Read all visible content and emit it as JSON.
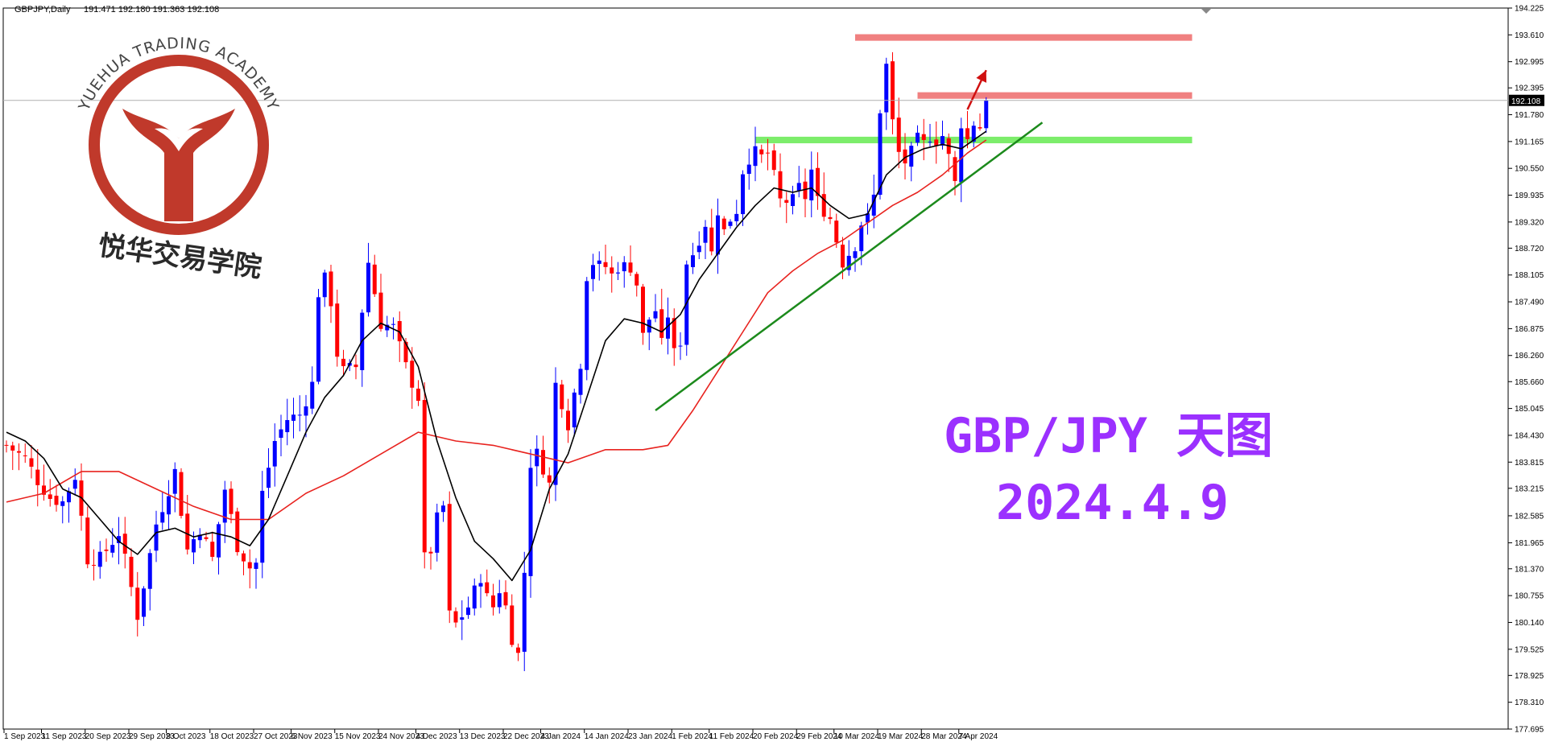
{
  "header": {
    "symbol": "GBPJPY,Daily",
    "ohlc": "191.471 192.180 191.363 192.108"
  },
  "logo": {
    "arc_text": "YUEHUA TRADING ACADEMY",
    "cn_text": "悦华交易学院"
  },
  "annotation": {
    "line1": "GBP/JPY 天图",
    "line2": "2024.4.9"
  },
  "colors": {
    "bull": "#0000ff",
    "bear": "#ff0000",
    "ma_fast": "#000000",
    "ma_slow": "#e8231f",
    "resistance": "#f08080",
    "support": "#7ced6b",
    "trendline": "#1c8a1c",
    "arrow": "#d01010",
    "title": "#9b30ff",
    "logo": "#c0392b"
  },
  "chart_data": {
    "type": "candlestick",
    "instrument": "GBPJPY",
    "timeframe": "Daily",
    "ylim": [
      177.695,
      194.225
    ],
    "y_ticks": [
      "194.225",
      "193.610",
      "192.995",
      "192.395",
      "191.780",
      "191.165",
      "190.550",
      "189.935",
      "189.320",
      "188.720",
      "188.105",
      "187.490",
      "186.875",
      "186.260",
      "185.660",
      "185.045",
      "184.430",
      "183.815",
      "183.215",
      "182.585",
      "181.965",
      "181.370",
      "180.755",
      "180.140",
      "179.525",
      "178.925",
      "178.310",
      "177.695"
    ],
    "current_price": "192.108",
    "current_price_value": 192.108,
    "x_ticks": [
      {
        "label": "1 Sep 2023",
        "day": 0
      },
      {
        "label": "11 Sep 2023",
        "day": 6
      },
      {
        "label": "20 Sep 2023",
        "day": 13
      },
      {
        "label": "29 Sep 2023",
        "day": 20
      },
      {
        "label": "9 Oct 2023",
        "day": 26
      },
      {
        "label": "18 Oct 2023",
        "day": 33
      },
      {
        "label": "27 Oct 2023",
        "day": 40
      },
      {
        "label": "6 Nov 2023",
        "day": 46
      },
      {
        "label": "15 Nov 2023",
        "day": 53
      },
      {
        "label": "24 Nov 2023",
        "day": 60
      },
      {
        "label": "4 Dec 2023",
        "day": 66
      },
      {
        "label": "13 Dec 2023",
        "day": 73
      },
      {
        "label": "22 Dec 2023",
        "day": 80
      },
      {
        "label": "4 Jan 2024",
        "day": 86
      },
      {
        "label": "14 Jan 2024",
        "day": 93
      },
      {
        "label": "23 Jan 2024",
        "day": 100
      },
      {
        "label": "1 Feb 2024",
        "day": 107
      },
      {
        "label": "11 Feb 2024",
        "day": 113
      },
      {
        "label": "20 Feb 2024",
        "day": 120
      },
      {
        "label": "29 Feb 2024",
        "day": 127
      },
      {
        "label": "10 Mar 2024",
        "day": 133
      },
      {
        "label": "19 Mar 2024",
        "day": 140
      },
      {
        "label": "28 Mar 2024",
        "day": 147
      },
      {
        "label": "7 Apr 2024",
        "day": 153
      }
    ],
    "close_path": [
      [
        0,
        184.2
      ],
      [
        3,
        183.9
      ],
      [
        5,
        183.4
      ],
      [
        7,
        183.0
      ],
      [
        9,
        182.9
      ],
      [
        11,
        183.5
      ],
      [
        13,
        181.6
      ],
      [
        15,
        181.6
      ],
      [
        18,
        182.2
      ],
      [
        21,
        180.3
      ],
      [
        24,
        182.4
      ],
      [
        27,
        183.6
      ],
      [
        29,
        181.8
      ],
      [
        31,
        182.3
      ],
      [
        33,
        181.6
      ],
      [
        35,
        183.2
      ],
      [
        37,
        181.9
      ],
      [
        39,
        181.4
      ],
      [
        40,
        181.5
      ],
      [
        41,
        183.1
      ],
      [
        43,
        184.3
      ],
      [
        45,
        184.8
      ],
      [
        47,
        184.9
      ],
      [
        49,
        185.6
      ],
      [
        50,
        187.7
      ],
      [
        51,
        188.0
      ],
      [
        52,
        187.5
      ],
      [
        53,
        186.3
      ],
      [
        54,
        185.9
      ],
      [
        56,
        186.0
      ],
      [
        57,
        187.3
      ],
      [
        58,
        188.4
      ],
      [
        60,
        187.0
      ],
      [
        62,
        186.9
      ],
      [
        64,
        186.0
      ],
      [
        66,
        185.3
      ],
      [
        67,
        181.6
      ],
      [
        68,
        181.8
      ],
      [
        69,
        182.5
      ],
      [
        70,
        182.8
      ],
      [
        71,
        180.3
      ],
      [
        72,
        180.1
      ],
      [
        74,
        180.5
      ],
      [
        76,
        181.2
      ],
      [
        77,
        180.7
      ],
      [
        78,
        180.5
      ],
      [
        79,
        180.9
      ],
      [
        80,
        180.5
      ],
      [
        81,
        179.8
      ],
      [
        82,
        179.4
      ],
      [
        83,
        181.3
      ],
      [
        84,
        183.8
      ],
      [
        85,
        184.0
      ],
      [
        86,
        183.7
      ],
      [
        87,
        183.3
      ],
      [
        88,
        185.6
      ],
      [
        89,
        185.2
      ],
      [
        90,
        184.7
      ],
      [
        91,
        185.4
      ],
      [
        92,
        186.1
      ],
      [
        93,
        188.1
      ],
      [
        94,
        188.4
      ],
      [
        95,
        188.3
      ],
      [
        96,
        188.3
      ],
      [
        97,
        188.1
      ],
      [
        98,
        188.3
      ],
      [
        100,
        188.3
      ],
      [
        101,
        187.9
      ],
      [
        102,
        186.7
      ],
      [
        103,
        187.1
      ],
      [
        104,
        187.3
      ],
      [
        105,
        186.5
      ],
      [
        106,
        187.2
      ],
      [
        107,
        186.3
      ],
      [
        108,
        186.6
      ],
      [
        109,
        188.4
      ],
      [
        110,
        188.6
      ],
      [
        112,
        189.3
      ],
      [
        113,
        188.6
      ],
      [
        114,
        189.6
      ],
      [
        115,
        189.1
      ],
      [
        116,
        189.4
      ],
      [
        117,
        189.6
      ],
      [
        118,
        190.5
      ],
      [
        119,
        190.8
      ],
      [
        120,
        190.9
      ],
      [
        121,
        190.8
      ],
      [
        122,
        190.9
      ],
      [
        124,
        189.8
      ],
      [
        126,
        189.8
      ],
      [
        127,
        190.1
      ],
      [
        128,
        189.9
      ],
      [
        129,
        190.5
      ],
      [
        130,
        189.8
      ],
      [
        132,
        189.4
      ],
      [
        134,
        188.4
      ],
      [
        135,
        188.6
      ],
      [
        136,
        188.8
      ],
      [
        137,
        189.3
      ],
      [
        138,
        189.4
      ],
      [
        139,
        189.9
      ],
      [
        140,
        191.9
      ],
      [
        141,
        192.9
      ],
      [
        142,
        191.6
      ],
      [
        143,
        190.9
      ],
      [
        144,
        190.7
      ],
      [
        145,
        190.9
      ],
      [
        146,
        191.2
      ],
      [
        147,
        191.1
      ],
      [
        148,
        191.3
      ],
      [
        149,
        191.2
      ],
      [
        150,
        191.3
      ],
      [
        151,
        190.8
      ],
      [
        152,
        190.2
      ],
      [
        153,
        191.6
      ],
      [
        154,
        191.2
      ],
      [
        155,
        191.6
      ],
      [
        156,
        191.5
      ],
      [
        157,
        192.108
      ]
    ],
    "ma_fast_path": [
      [
        0,
        184.5
      ],
      [
        3,
        184.3
      ],
      [
        6,
        183.9
      ],
      [
        9,
        183.2
      ],
      [
        12,
        183.0
      ],
      [
        15,
        182.5
      ],
      [
        18,
        182.0
      ],
      [
        21,
        181.7
      ],
      [
        24,
        182.2
      ],
      [
        27,
        182.3
      ],
      [
        30,
        182.1
      ],
      [
        33,
        182.2
      ],
      [
        36,
        182.1
      ],
      [
        39,
        181.9
      ],
      [
        42,
        182.5
      ],
      [
        45,
        183.5
      ],
      [
        48,
        184.5
      ],
      [
        51,
        185.3
      ],
      [
        54,
        185.8
      ],
      [
        57,
        186.6
      ],
      [
        60,
        187.0
      ],
      [
        63,
        186.8
      ],
      [
        66,
        186.0
      ],
      [
        69,
        184.3
      ],
      [
        72,
        183.0
      ],
      [
        75,
        182.0
      ],
      [
        78,
        181.6
      ],
      [
        81,
        181.1
      ],
      [
        84,
        181.8
      ],
      [
        87,
        183.2
      ],
      [
        90,
        184.0
      ],
      [
        93,
        185.3
      ],
      [
        96,
        186.6
      ],
      [
        99,
        187.1
      ],
      [
        102,
        187.0
      ],
      [
        105,
        186.8
      ],
      [
        108,
        187.2
      ],
      [
        111,
        188.0
      ],
      [
        114,
        188.6
      ],
      [
        117,
        189.2
      ],
      [
        120,
        189.7
      ],
      [
        123,
        190.1
      ],
      [
        126,
        190.0
      ],
      [
        129,
        190.1
      ],
      [
        132,
        189.7
      ],
      [
        135,
        189.4
      ],
      [
        138,
        189.5
      ],
      [
        141,
        190.4
      ],
      [
        144,
        190.8
      ],
      [
        147,
        191.0
      ],
      [
        150,
        191.1
      ],
      [
        153,
        191.0
      ],
      [
        157,
        191.4
      ]
    ],
    "ma_slow_path": [
      [
        0,
        182.9
      ],
      [
        6,
        183.1
      ],
      [
        12,
        183.6
      ],
      [
        18,
        183.6
      ],
      [
        24,
        183.2
      ],
      [
        30,
        182.8
      ],
      [
        36,
        182.5
      ],
      [
        42,
        182.5
      ],
      [
        48,
        183.1
      ],
      [
        54,
        183.5
      ],
      [
        60,
        184.0
      ],
      [
        66,
        184.5
      ],
      [
        72,
        184.3
      ],
      [
        78,
        184.2
      ],
      [
        84,
        184.0
      ],
      [
        90,
        183.8
      ],
      [
        96,
        184.1
      ],
      [
        102,
        184.1
      ],
      [
        106,
        184.2
      ],
      [
        110,
        185.0
      ],
      [
        114,
        185.9
      ],
      [
        118,
        186.8
      ],
      [
        122,
        187.7
      ],
      [
        126,
        188.2
      ],
      [
        130,
        188.6
      ],
      [
        134,
        188.9
      ],
      [
        138,
        189.3
      ],
      [
        142,
        189.7
      ],
      [
        146,
        190.0
      ],
      [
        150,
        190.4
      ],
      [
        154,
        190.9
      ],
      [
        157,
        191.2
      ]
    ],
    "resistance_zones": [
      {
        "day_from": 136,
        "day_to": 190,
        "price": 193.55,
        "band": 0.15
      },
      {
        "day_from": 146,
        "day_to": 190,
        "price": 192.22,
        "band": 0.15
      }
    ],
    "support_zones": [
      {
        "day_from": 120,
        "day_to": 190,
        "price": 191.2,
        "band": 0.15
      }
    ],
    "trendline": {
      "from": [
        104,
        185.0
      ],
      "to": [
        166,
        191.6
      ]
    },
    "arrow": {
      "from": [
        154,
        191.9
      ],
      "to": [
        157,
        192.8
      ]
    }
  }
}
